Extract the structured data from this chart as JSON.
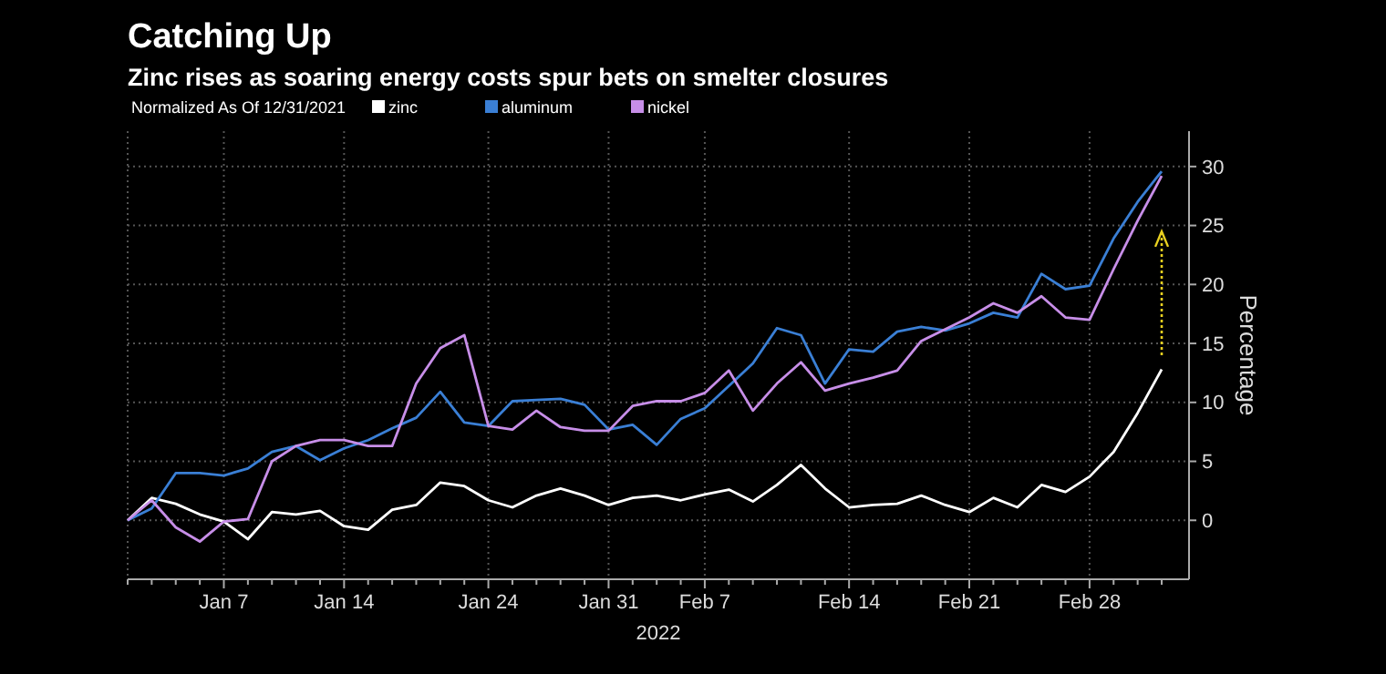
{
  "chart_data": {
    "type": "line",
    "title": "Catching Up",
    "subtitle": "Zinc rises as soaring energy costs spur bets on smelter closures",
    "legend_title": "Normalized As Of 12/31/2021",
    "xlabel": "2022",
    "ylabel": "Percentage",
    "categories": [
      null,
      null,
      null,
      null,
      "Jan 7",
      null,
      null,
      null,
      null,
      "Jan 14",
      null,
      null,
      null,
      null,
      null,
      "Jan 24",
      null,
      null,
      null,
      null,
      "Jan 31",
      null,
      null,
      null,
      "Feb 7",
      null,
      null,
      null,
      null,
      null,
      "Feb 14",
      null,
      null,
      null,
      null,
      "Feb 21",
      null,
      null,
      null,
      null,
      "Feb 28",
      null,
      null,
      null
    ],
    "series": [
      {
        "name": "zinc",
        "color": "#ffffff",
        "values": [
          0,
          1.9,
          1.4,
          0.5,
          -0.1,
          -1.6,
          0.7,
          0.5,
          0.8,
          -0.5,
          -0.8,
          0.9,
          1.3,
          3.2,
          2.9,
          1.7,
          1.1,
          2.1,
          2.7,
          2.1,
          1.3,
          1.9,
          2.1,
          1.7,
          2.2,
          2.6,
          1.6,
          3.0,
          4.7,
          2.7,
          1.1,
          1.3,
          1.4,
          2.1,
          1.3,
          0.7,
          1.9,
          1.1,
          3.0,
          2.4,
          3.7,
          5.8,
          9.1,
          12.8
        ]
      },
      {
        "name": "aluminum",
        "color": "#3a7fd5",
        "values": [
          0,
          1.0,
          4.0,
          4.0,
          3.8,
          4.4,
          5.8,
          6.3,
          5.1,
          6.1,
          6.8,
          7.8,
          8.7,
          10.9,
          8.3,
          8.0,
          10.1,
          10.2,
          10.3,
          9.8,
          7.7,
          8.1,
          6.4,
          8.6,
          9.5,
          11.4,
          13.3,
          16.3,
          15.7,
          11.6,
          14.5,
          14.3,
          16.0,
          16.4,
          16.1,
          16.7,
          17.6,
          17.2,
          20.9,
          19.6,
          19.9,
          23.9,
          27.0,
          29.6
        ]
      },
      {
        "name": "nickel",
        "color": "#c78ee8",
        "values": [
          0,
          1.7,
          -0.6,
          -1.8,
          -0.1,
          0.1,
          5.0,
          6.3,
          6.8,
          6.8,
          6.3,
          6.3,
          11.6,
          14.6,
          15.7,
          8.0,
          7.7,
          9.3,
          7.9,
          7.6,
          7.6,
          9.7,
          10.1,
          10.1,
          10.8,
          12.7,
          9.3,
          11.6,
          13.4,
          11.0,
          11.6,
          12.1,
          12.7,
          15.2,
          16.2,
          17.2,
          18.4,
          17.6,
          19.0,
          17.2,
          17.0,
          21.3,
          25.4,
          29.2
        ]
      }
    ],
    "ylim": [
      -5,
      33
    ],
    "yticks": [
      0,
      5,
      10,
      15,
      20,
      25,
      30
    ],
    "grid": true,
    "legend": "top left",
    "marker": "none",
    "line_style": "solid"
  }
}
